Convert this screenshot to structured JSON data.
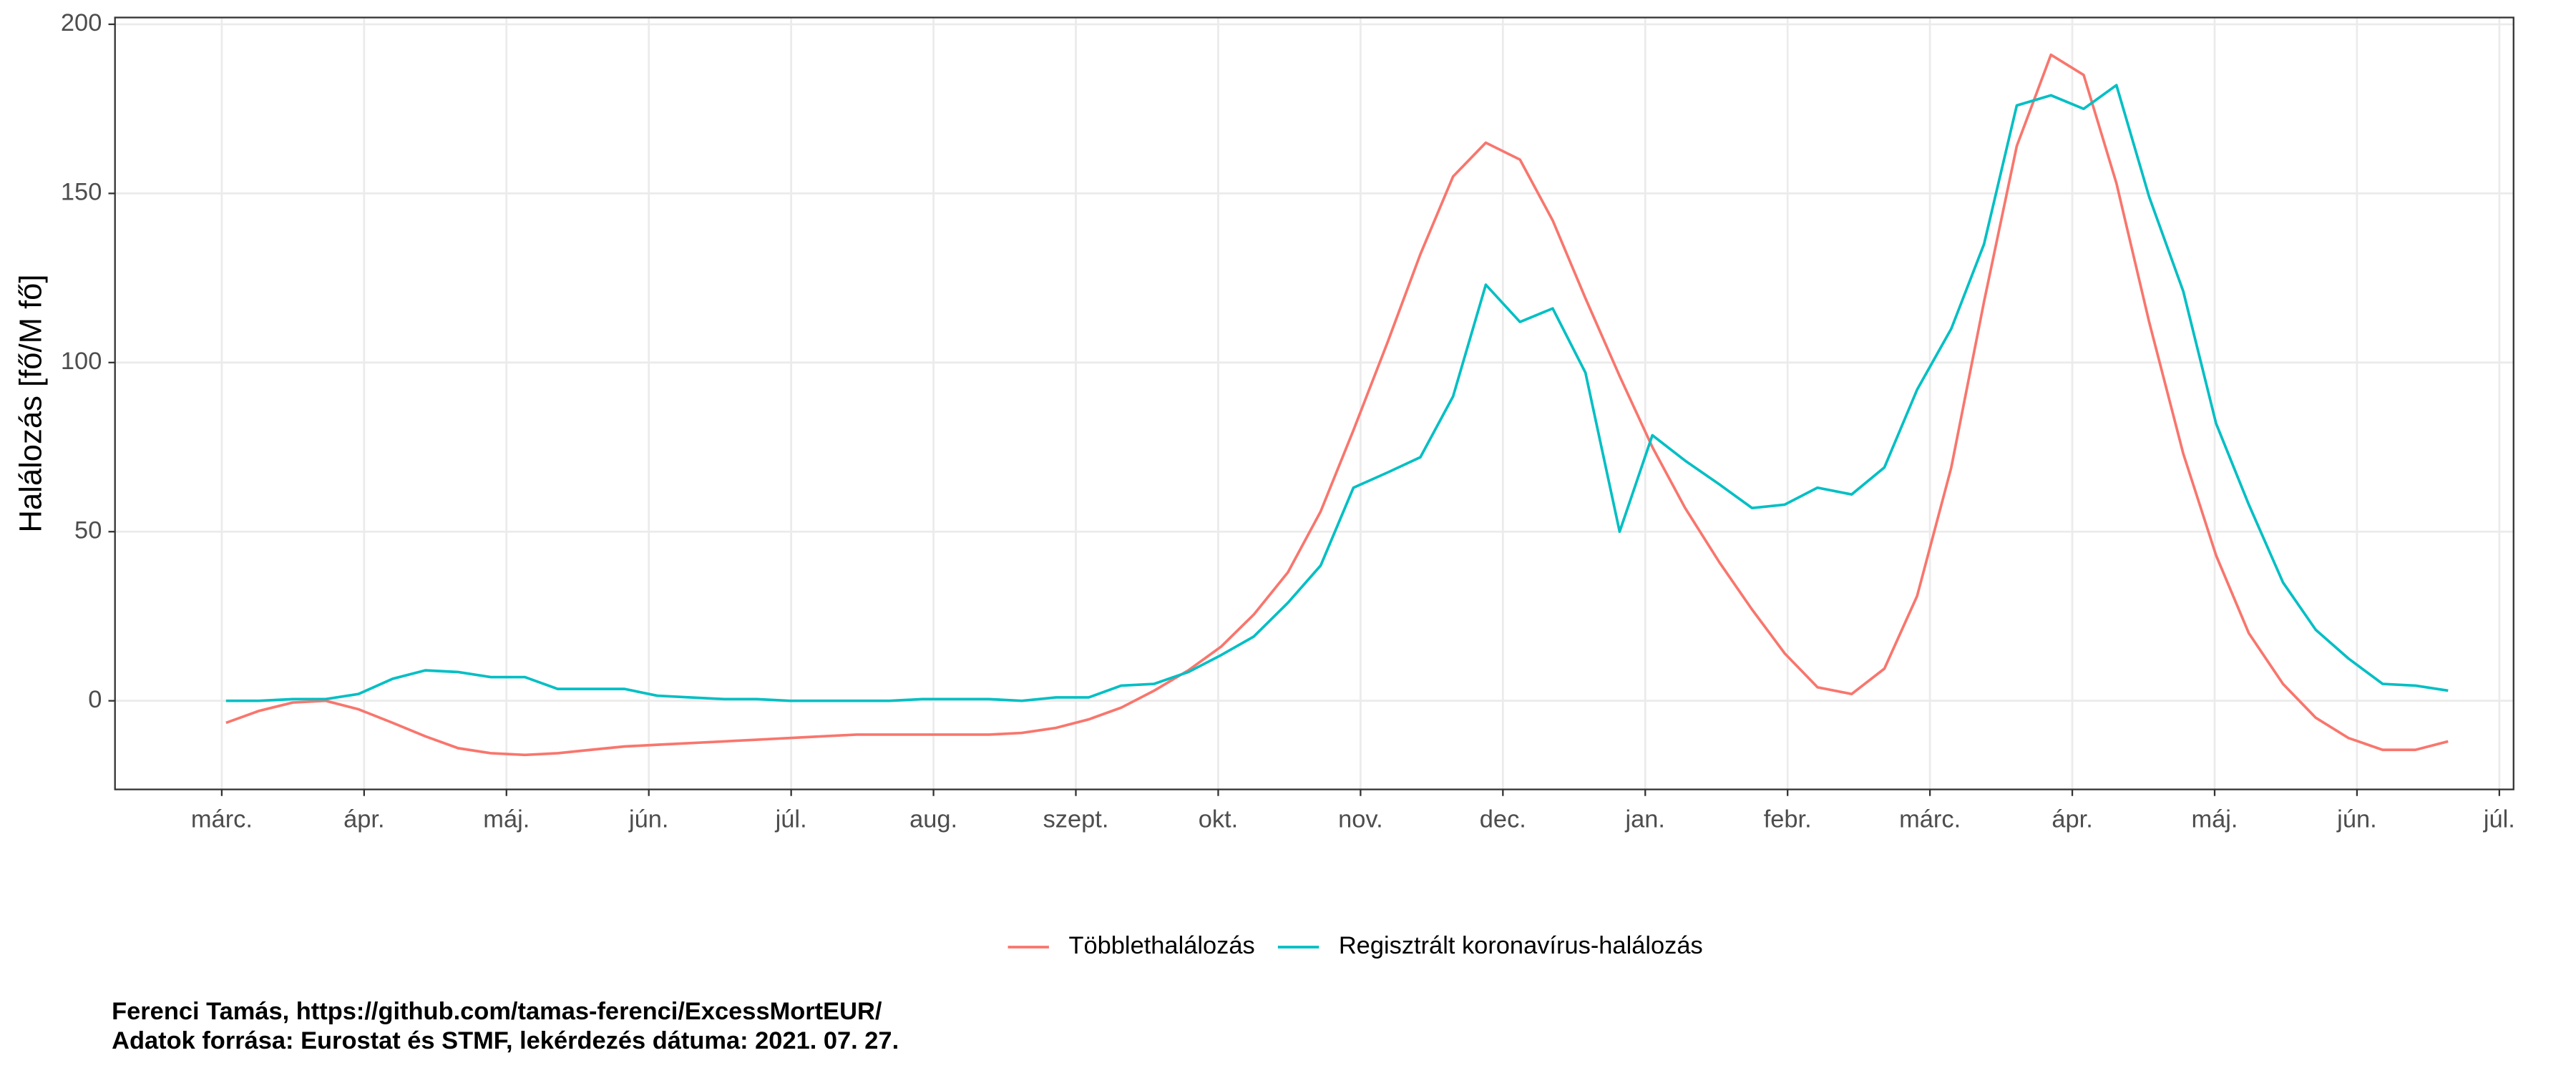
{
  "chart_data": {
    "type": "line",
    "y_label": "Halálozás [fő/M fő]",
    "caption": [
      "Ferenci Tamás, https://github.com/tamas-ferenci/ExcessMortEUR/",
      "Adatok forrása: Eurostat és STMF, lekérdezés dátuma: 2021. 07. 27."
    ],
    "x": [
      0.03,
      0.26,
      0.5,
      0.73,
      0.96,
      1.2,
      1.43,
      1.66,
      1.89,
      2.13,
      2.36,
      2.59,
      2.83,
      3.06,
      3.29,
      3.53,
      3.76,
      3.99,
      4.22,
      4.46,
      4.69,
      4.92,
      5.16,
      5.39,
      5.62,
      5.86,
      6.09,
      6.32,
      6.55,
      6.79,
      7.02,
      7.25,
      7.49,
      7.72,
      7.95,
      8.19,
      8.42,
      8.65,
      8.88,
      9.12,
      9.35,
      9.58,
      9.82,
      10.05,
      10.28,
      10.52,
      10.75,
      10.98,
      11.21,
      11.45,
      11.68,
      11.91,
      12.15,
      12.38,
      12.61,
      12.85,
      13.08,
      13.31,
      13.54,
      13.78,
      14.01,
      14.24,
      14.48,
      14.71,
      14.94,
      15.18,
      15.41,
      15.64
    ],
    "series": [
      {
        "name": "Többlethalálozás",
        "color": "#F8766D",
        "values": [
          -6.5,
          -3,
          -0.5,
          0,
          -2.5,
          -6.5,
          -10.5,
          -14,
          -15.5,
          -16,
          -15.5,
          -14.5,
          -13.5,
          -13,
          -12.5,
          -12,
          -11.5,
          -11,
          -10.5,
          -10,
          -10,
          -10,
          -10,
          -10,
          -9.5,
          -8,
          -5.5,
          -2,
          3,
          9,
          16,
          25.5,
          38,
          56,
          80,
          106,
          132,
          155,
          165,
          160,
          142,
          119,
          96,
          75,
          57,
          41,
          27,
          14,
          4,
          2,
          9.5,
          31,
          69,
          118,
          164,
          191,
          185,
          153,
          112,
          73,
          43,
          20,
          5,
          -5,
          -11,
          -14.5,
          -14.5,
          -12
        ]
      },
      {
        "name": "Regisztrált koronavírus-halálozás",
        "color": "#00BFC4",
        "values": [
          0,
          0,
          0.5,
          0.5,
          2,
          6.5,
          9,
          8.5,
          7,
          7,
          3.5,
          3.5,
          3.5,
          1.5,
          1,
          0.5,
          0.5,
          0,
          0,
          0,
          0,
          0.5,
          0.5,
          0.5,
          0,
          1,
          1,
          4.5,
          5,
          8.5,
          13.5,
          19,
          29,
          40,
          63,
          67.5,
          72,
          90,
          123,
          112,
          116,
          97,
          50,
          78.5,
          71,
          64,
          57,
          58,
          63,
          61,
          69,
          92,
          110,
          135,
          176,
          179,
          175,
          182,
          149,
          121,
          82,
          58,
          35,
          21,
          12.5,
          5,
          4.5,
          3
        ]
      }
    ],
    "xlim": [
      -0.75,
      16.1
    ],
    "ylim": [
      -26.2,
      202
    ],
    "xticks": [
      {
        "value": 0,
        "label": "márc."
      },
      {
        "value": 1,
        "label": "ápr."
      },
      {
        "value": 2,
        "label": "máj."
      },
      {
        "value": 3,
        "label": "jún."
      },
      {
        "value": 4,
        "label": "júl."
      },
      {
        "value": 5,
        "label": "aug."
      },
      {
        "value": 6,
        "label": "szept."
      },
      {
        "value": 7,
        "label": "okt."
      },
      {
        "value": 8,
        "label": "nov."
      },
      {
        "value": 9,
        "label": "dec."
      },
      {
        "value": 10,
        "label": "jan."
      },
      {
        "value": 11,
        "label": "febr."
      },
      {
        "value": 12,
        "label": "márc."
      },
      {
        "value": 13,
        "label": "ápr."
      },
      {
        "value": 14,
        "label": "máj."
      },
      {
        "value": 15,
        "label": "jún."
      },
      {
        "value": 16,
        "label": "júl."
      }
    ],
    "yticks": [
      0,
      50,
      100,
      150,
      200
    ],
    "grid": true,
    "legend": "bottom"
  }
}
